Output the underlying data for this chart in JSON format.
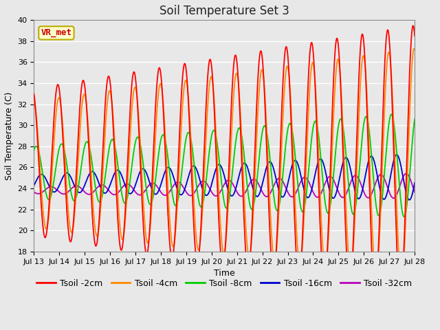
{
  "title": "Soil Temperature Set 3",
  "xlabel": "Time",
  "ylabel": "Soil Temperature (C)",
  "ylim": [
    18,
    40
  ],
  "x_tick_labels": [
    "Jul 13",
    "Jul 14",
    "Jul 15",
    "Jul 16",
    "Jul 17",
    "Jul 18",
    "Jul 19",
    "Jul 20",
    "Jul 21",
    "Jul 22",
    "Jul 23",
    "Jul 24",
    "Jul 25",
    "Jul 26",
    "Jul 27",
    "Jul 28"
  ],
  "annotation_text": "VR_met",
  "annotation_color": "#cc0000",
  "annotation_bg": "#ffffcc",
  "annotation_border": "#bbaa00",
  "line_colors": {
    "Tsoil -2cm": "#ff0000",
    "Tsoil -4cm": "#ff8800",
    "Tsoil -8cm": "#00cc00",
    "Tsoil -16cm": "#0000cc",
    "Tsoil -32cm": "#bb00bb"
  },
  "bg_color": "#e8e8e8",
  "grid_color": "#ffffff",
  "title_fontsize": 12,
  "axis_fontsize": 9,
  "tick_fontsize": 8,
  "legend_fontsize": 9
}
